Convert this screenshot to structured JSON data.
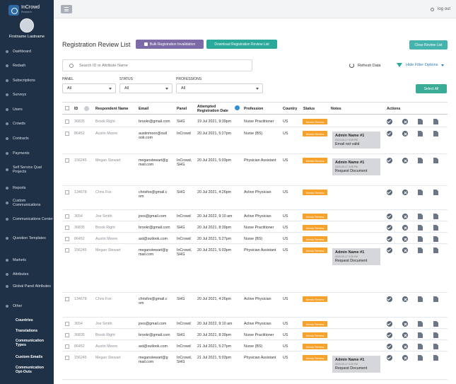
{
  "brand": {
    "name": "InCrowd",
    "tagline": "Research"
  },
  "user": {
    "name": "Firstname Lastname"
  },
  "sidebar": {
    "items": [
      "Dashboard",
      "Redash",
      "Subscriptions",
      "Surveys",
      "Users",
      "Crowds",
      "Contracts",
      "Payments",
      "Self Service Qual Projects",
      "Reports",
      "Custom Communications",
      "Communications Center",
      "Question Templates",
      "Markets",
      "Attributes",
      "Global Panel Attributes",
      "Other"
    ],
    "sub_items": [
      "Countries",
      "Translations",
      "Communication Types",
      "Custom Emails",
      "Communication Opt-Outs"
    ]
  },
  "topbar": {
    "logout": "log out"
  },
  "page": {
    "title": "Registration Review List",
    "bulk_button": "Bulk Registration Invalidation",
    "download_button": "Download Registration Review List",
    "clear_button": "Clear Review List",
    "search_placeholder": "Search ID or Attribute Name",
    "refresh": "Refresh Data",
    "hide_filter": "Hide Filter Options",
    "select_all": "Select All",
    "filters": [
      {
        "label": "PANEL",
        "value": "All"
      },
      {
        "label": "STATUS",
        "value": "All"
      },
      {
        "label": "PROFESSIONS",
        "value": "All"
      }
    ]
  },
  "table": {
    "headers": {
      "id": "ID",
      "respondent": "Respondent Name",
      "email": "Email",
      "panel": "Panel",
      "attempted1": "Attempted",
      "attempted2": "Registration Date",
      "profession": "Profession",
      "country": "Country",
      "status": "Status",
      "notes": "Notes",
      "actions": "Actions"
    },
    "rows": [
      {
        "id": "36835",
        "name": "Brook Right",
        "email": [
          "brookr@gmail.com"
        ],
        "panel": [
          "SHG"
        ],
        "date": "19 Jul 2021, 9:39pm",
        "profession": "Nurse Practitioner",
        "country": "US",
        "status": "Needs Review"
      },
      {
        "id": "86452",
        "name": "Austin Moore",
        "email": [
          "austinmoor@outl",
          "ook.com"
        ],
        "panel": [
          "InCrowd"
        ],
        "date": "20 Jul 2021, 5:27pm",
        "profession": "Nurse (BS)",
        "country": "US",
        "status": "Needs Review",
        "note": {
          "name": "Admin Name #1",
          "date": "2020-09-17 3:35 PM",
          "text": "Email not valid"
        }
      },
      {
        "id": "156245",
        "name": "Megan Stewart",
        "email": [
          "meganstewart@g",
          "mail.com"
        ],
        "panel": [
          "InCrowd,",
          "SHG"
        ],
        "date": "20 Jul 2021, 5:03pm",
        "profession": "Physician Assistant",
        "country": "US",
        "status": "Needs Review",
        "note": {
          "name": "Admin Name #1",
          "date": "2020-09-17 3:35 PM",
          "text": "Request Document"
        }
      },
      {
        "id": "134678",
        "name": "Chris Fox",
        "email": [
          "chrisfox@gmail.c",
          "om"
        ],
        "panel": [
          "SHG"
        ],
        "date": "20 Jul 2021, 4:26pm",
        "profession": "Active Physician",
        "country": "US",
        "status": "Needs Review"
      },
      {
        "id": "3654",
        "name": "Joe Smith",
        "email": [
          "joes@gmail.com"
        ],
        "panel": [
          "InCrowd"
        ],
        "date": "20 Jul 2022, 9:10 am",
        "profession": "Active Physician",
        "country": "US",
        "status": "Needs Review"
      },
      {
        "id": "36835",
        "name": "Brook Right",
        "email": [
          "brookr@gmail.com"
        ],
        "panel": [
          "SHG"
        ],
        "date": "20 Jul 2021, 8:39pm",
        "profession": "Nurse Practitioner",
        "country": "US",
        "status": "Needs Review"
      },
      {
        "id": "86452",
        "name": "Austin Moore",
        "email": [
          "ast@outlook.com"
        ],
        "panel": [
          "InCrowd"
        ],
        "date": "20 Jul 2021, 5:27pm",
        "profession": "Nurse (BS)",
        "country": "US",
        "status": "Needs Review"
      },
      {
        "id": "156245",
        "name": "Megan Stewart",
        "email": [
          "meganstewart@g",
          "mail.com"
        ],
        "panel": [
          "InCrowd,",
          "SHG"
        ],
        "date": "20 Jul 2021, 5:03pm",
        "profession": "Physician Assistant",
        "country": "US",
        "status": "Needs Review",
        "note": {
          "name": "Admin Name #1",
          "date": "2020-09-17 3:35 PM",
          "text": "Request Document"
        }
      },
      {
        "id": "134678",
        "name": "Chris Fox",
        "email": [
          "chrisfox@gmail.c",
          "om"
        ],
        "panel": [
          "SHG"
        ],
        "date": "20 Jul 2021, 4:26pm",
        "profession": "Active Physician",
        "country": "US",
        "status": "Needs Review"
      },
      {
        "id": "3654",
        "name": "Joe Smith",
        "email": [
          "joes@gmail.com"
        ],
        "panel": [
          "InCrowd"
        ],
        "date": "20 Jul 2022, 9:10 am",
        "profession": "Active Physician",
        "country": "US",
        "status": "Needs Review"
      },
      {
        "id": "36835",
        "name": "Brook Right",
        "email": [
          "brookr@gmail.com"
        ],
        "panel": [
          "SHG"
        ],
        "date": "20 Jul 2021, 8:39pm",
        "profession": "Nurse Practitioner",
        "country": "US",
        "status": "Needs Review"
      },
      {
        "id": "86452",
        "name": "Austin Moore",
        "email": [
          "ast@outlook.com"
        ],
        "panel": [
          "InCrowd"
        ],
        "date": "21 Jul 2021, 5:27pm",
        "profession": "Nurse (BS)",
        "country": "US",
        "status": "Needs Review"
      },
      {
        "id": "156245",
        "name": "Megan Stewart",
        "email": [
          "meganstewart@g",
          "mail.com"
        ],
        "panel": [
          "InCrowd,",
          "SHG"
        ],
        "date": "21 Jul 2021, 5:03pm",
        "profession": "Physician Assistant",
        "country": "US",
        "status": "Needs Review",
        "note": {
          "name": "Admin Name #1",
          "date": "2020-09-17 3:35 PM",
          "text": "Request Document"
        }
      }
    ]
  }
}
